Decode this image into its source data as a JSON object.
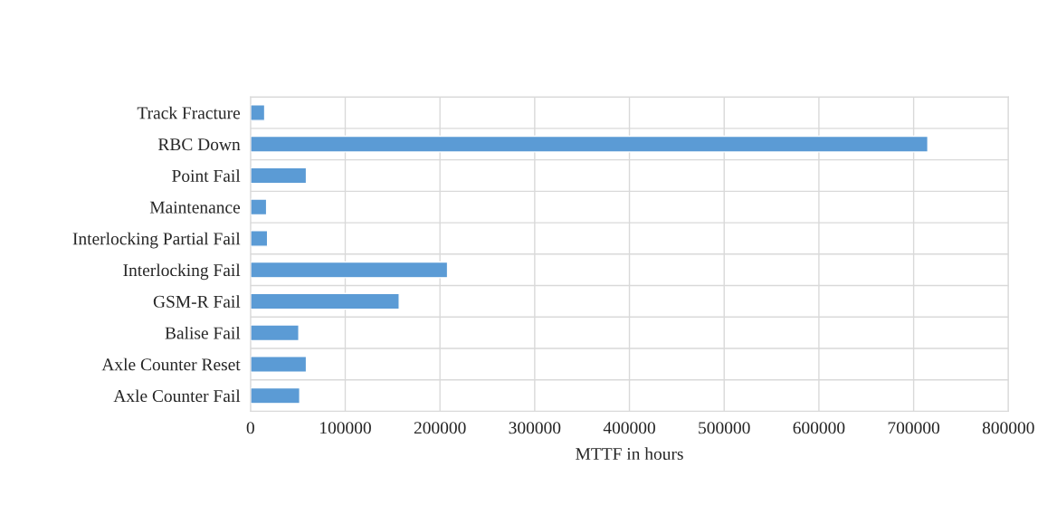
{
  "chart_data": {
    "type": "bar",
    "orientation": "horizontal",
    "categories": [
      "Track Fracture",
      "RBC Down",
      "Point Fail",
      "Maintenance",
      "Interlocking Partial Fail",
      "Interlocking Fail",
      "GSM-R Fail",
      "Balise Fail",
      "Axle Counter Reset",
      "Axle Counter Fail"
    ],
    "values": [
      15000,
      715000,
      59000,
      17000,
      18000,
      208000,
      157000,
      51000,
      59000,
      52000
    ],
    "color": "#5b9bd5",
    "xlabel": "MTTF in hours",
    "xlim": [
      0,
      800000
    ],
    "xticks": [
      0,
      100000,
      200000,
      300000,
      400000,
      500000,
      600000,
      700000,
      800000
    ],
    "grid": "x",
    "legend": false
  }
}
